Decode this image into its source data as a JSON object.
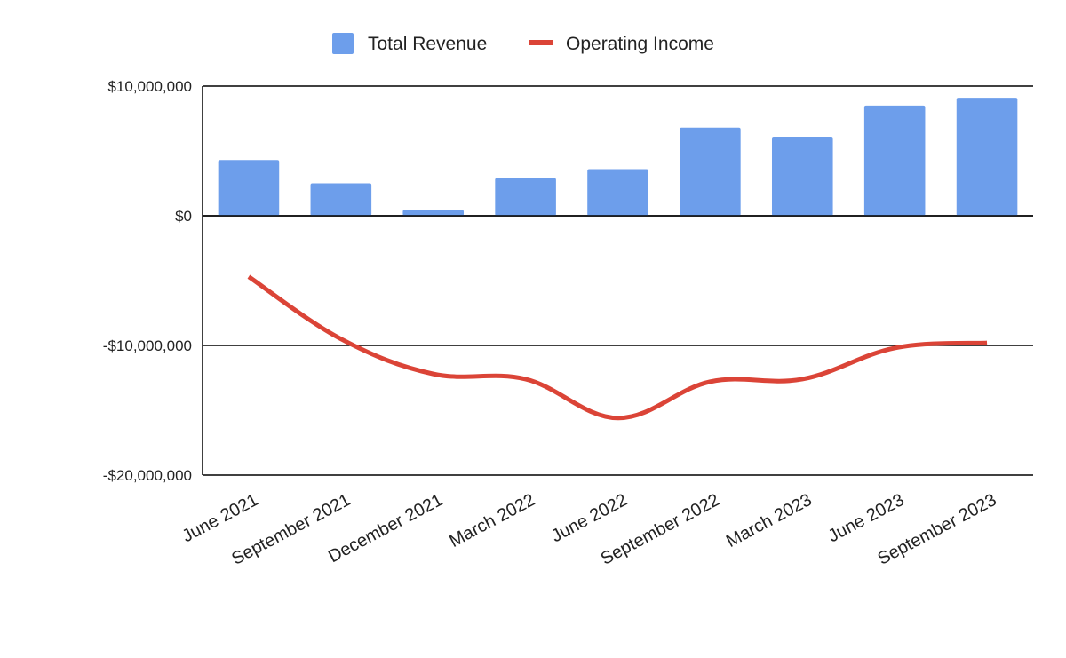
{
  "chart_data": {
    "type": "bar",
    "title": "",
    "xlabel": "",
    "ylabel": "",
    "categories": [
      "June 2021",
      "September 2021",
      "December 2021",
      "March 2022",
      "June 2022",
      "September 2022",
      "March 2023",
      "June 2023",
      "September 2023"
    ],
    "series": [
      {
        "name": "Total Revenue",
        "type": "bar",
        "color": "#6d9eeb",
        "values": [
          4300000,
          2500000,
          450000,
          2900000,
          3600000,
          6800000,
          6100000,
          8500000,
          9100000
        ]
      },
      {
        "name": "Operating Income",
        "type": "line",
        "smooth": true,
        "color": "#db4437",
        "values": [
          -4700000,
          -9500000,
          -12200000,
          -12600000,
          -15600000,
          -12800000,
          -12600000,
          -10200000,
          -9800000
        ]
      }
    ],
    "ylim": [
      -20000000,
      10000000
    ],
    "yticks": [
      {
        "value": 10000000,
        "label": "$10,000,000"
      },
      {
        "value": 0,
        "label": "$0"
      },
      {
        "value": -10000000,
        "label": "-$10,000,000"
      },
      {
        "value": -20000000,
        "label": "-$20,000,000"
      }
    ],
    "grid": true,
    "legend_position": "top"
  }
}
